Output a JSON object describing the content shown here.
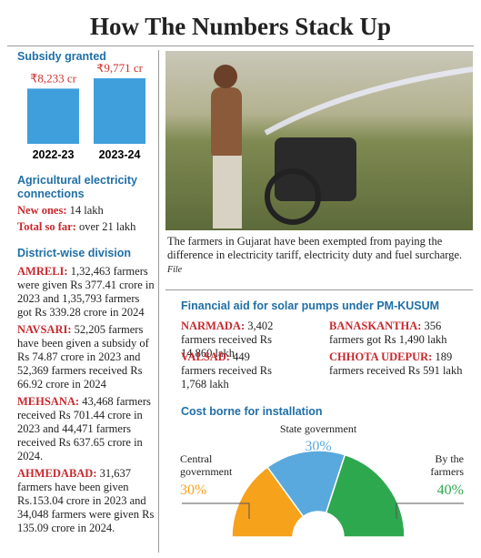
{
  "header": {
    "title": "How The Numbers Stack Up"
  },
  "chart_data": [
    {
      "type": "bar",
      "title": "Subsidy granted",
      "categories": [
        "2022-23",
        "2023-24"
      ],
      "values": [
        8233,
        9771
      ],
      "value_labels": [
        "₹8,233 cr",
        "₹9,771 cr"
      ],
      "color": "#3f9fdc",
      "label_color": "#d0312d"
    },
    {
      "type": "half-donut",
      "title": "Cost borne for installation",
      "categories": [
        "Central government",
        "State government",
        "By the farmers"
      ],
      "values": [
        30,
        30,
        40
      ],
      "value_labels": [
        "30%",
        "30%",
        "40%"
      ],
      "colors": [
        "#f7a21b",
        "#5aa9de",
        "#2ea84f"
      ]
    }
  ],
  "electricity": {
    "heading": "Agricultural electricity connections",
    "items": [
      {
        "label": "New ones:",
        "text": "14 lakh"
      },
      {
        "label": "Total so far:",
        "text": "over 21 lakh"
      }
    ]
  },
  "districts": {
    "heading": "District-wise division",
    "items": [
      {
        "name": "AMRELI:",
        "text": "1,32,463 farmers were given Rs 377.41 crore in 2023 and 1,35,793 farmers got Rs 339.28 crore in 2024"
      },
      {
        "name": "NAVSARI:",
        "text": "52,205 farmers have been given a subsidy of Rs 74.87 crore in 2023 and 52,369 farmers received Rs 66.92 crore in 2024"
      },
      {
        "name": "MEHSANA:",
        "text": "43,468 farmers received Rs 701.44 crore in 2023 and 44,471 farmers received Rs 637.65 crore in 2024."
      },
      {
        "name": "AHMEDABAD:",
        "text": "31,637 farmers have been given Rs.153.04 crore in 2023 and 34,048 farmers were given Rs 135.09 crore in 2024."
      }
    ]
  },
  "photo": {
    "caption": "The farmers in Gujarat have been exempted from paying the difference in electricity tariff, electricity duty and fuel surcharge.",
    "credit": "File"
  },
  "solar": {
    "heading": "Financial aid for solar pumps under PM-KUSUM",
    "items": [
      {
        "name": "NARMADA:",
        "text": "3,402 farmers received Rs 14,860 lakh"
      },
      {
        "name": "BANASKANTHA:",
        "text": "356 farmers got Rs 1,490 lakh"
      },
      {
        "name": "VALSAD:",
        "text": "449 farmers received Rs 1,768 lakh"
      },
      {
        "name": "CHHOTA UDEPUR:",
        "text": "189 farmers received Rs 591 lakh"
      }
    ]
  }
}
